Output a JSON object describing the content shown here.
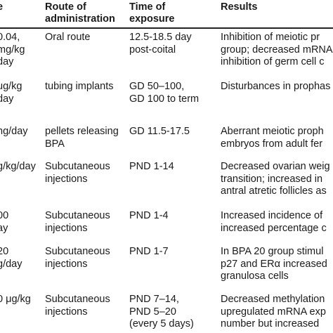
{
  "headers": [
    "e",
    "Route of\nadministration",
    "Time of\nexposure",
    "Results"
  ],
  "rows": [
    {
      "dose": "0.04,\nmg/kg\nday",
      "route": "Oral route",
      "time": "12.5-18.5 day\npost-coital",
      "results": "Inhibition of meiotic pr\ngroup; decreased mRNA\ninhibition of germ cell c"
    },
    {
      "dose": "ug/kg\nday",
      "route": "tubing implants",
      "time": "GD 50–100,\nGD 100 to term",
      "results": "Disturbances in prophas"
    },
    {
      "dose": "ng/day",
      "route": "pellets releasing\nBPA",
      "time": "GD 11.5-17.5",
      "results": "Aberrant meiotic proph\nembryos from adult fer"
    },
    {
      "dose": "g/kg/day",
      "route": "Subcutaneous\ninjections",
      "time": "PND 1-14",
      "results": "Decreased ovarian weig\ntransition; increased in\nantral atretic follicles as"
    },
    {
      "dose": "00\nay",
      "route": "Subcutaneous\ninjections",
      "time": "PND 1-4",
      "results": "Increased incidence of\nincreased percentage c"
    },
    {
      "dose": "20\ng/day",
      "route": "Subcutaneous\ninjections",
      "time": "PND 1-7",
      "results": "In BPA 20 group stimul\np27 and ERα increased\ngranulosa cells"
    },
    {
      "dose": "0 μg/kg",
      "route": "Subcutaneous\ninjections",
      "time": "PND 7–14,\nPND 5–20\n(every 5 days)",
      "results": "Decreased methylation\nupregulated mRNA exp\nnumber but increased"
    }
  ]
}
